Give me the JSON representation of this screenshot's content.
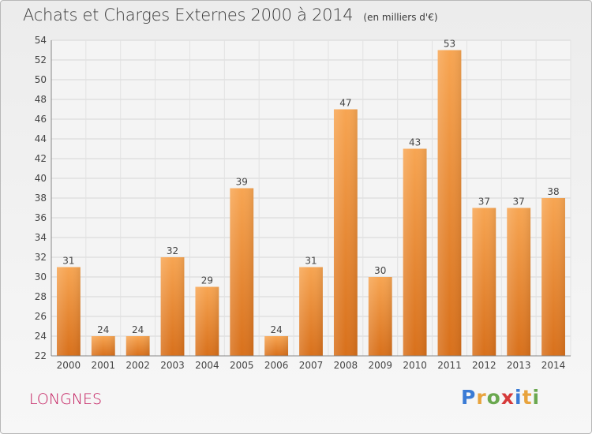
{
  "title": "Achats et Charges Externes 2000 à 2014",
  "subtitle": "(en milliers d'€)",
  "commune": "LONGNES",
  "logo": {
    "letters": [
      "P",
      "r",
      "o",
      "x",
      "i",
      "t",
      "i"
    ],
    "colors": [
      "#3a7bd5",
      "#e8a33d",
      "#6aa84f",
      "#d63a3a",
      "#3a7bd5",
      "#e8a33d",
      "#6aa84f"
    ]
  },
  "chart_data": {
    "type": "bar",
    "categories": [
      "2000",
      "2001",
      "2002",
      "2003",
      "2004",
      "2005",
      "2006",
      "2007",
      "2008",
      "2009",
      "2010",
      "2011",
      "2012",
      "2013",
      "2014"
    ],
    "values": [
      31,
      24,
      24,
      32,
      29,
      39,
      24,
      31,
      47,
      30,
      43,
      53,
      37,
      37,
      38
    ],
    "ylim": [
      22,
      54
    ],
    "yticks": [
      22,
      24,
      26,
      28,
      30,
      32,
      34,
      36,
      38,
      40,
      42,
      44,
      46,
      48,
      50,
      52,
      54
    ],
    "grid": true,
    "bar_color": "#f0963a"
  }
}
